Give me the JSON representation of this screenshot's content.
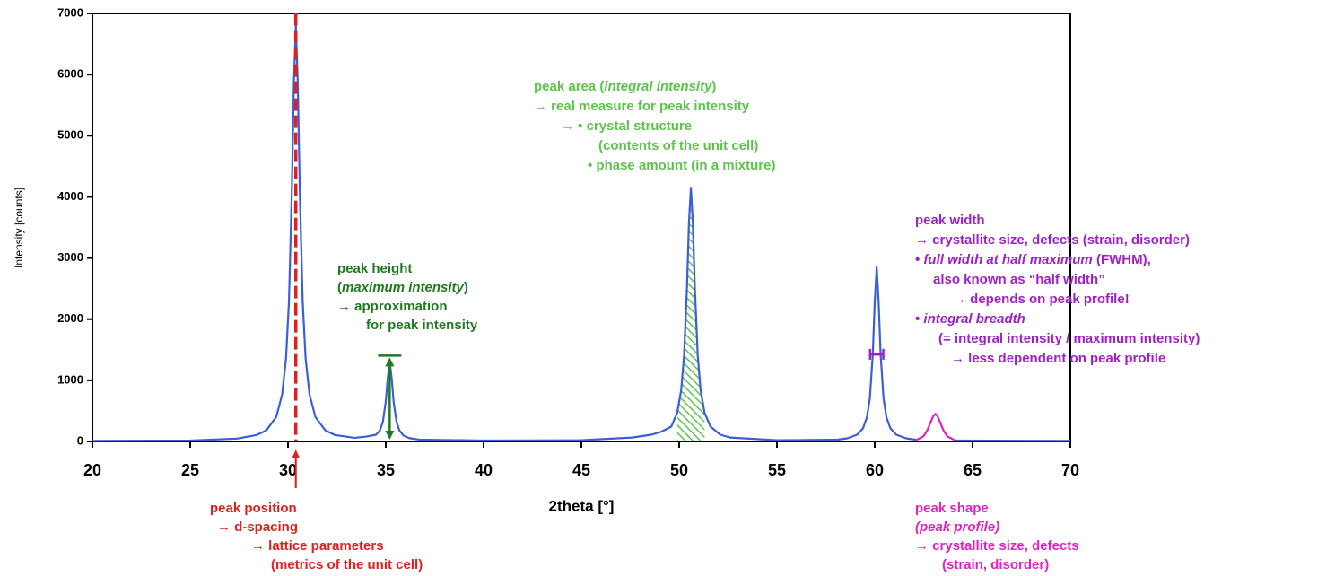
{
  "chart_data": {
    "type": "line",
    "xlabel": "2theta [°]",
    "ylabel": "Intensity [counts]",
    "xlim": [
      20,
      70
    ],
    "ylim": [
      0,
      7000
    ],
    "xticks": [
      20,
      25,
      30,
      35,
      40,
      45,
      50,
      55,
      60,
      65,
      70
    ],
    "yticks": [
      0,
      1000,
      2000,
      3000,
      4000,
      5000,
      6000,
      7000
    ],
    "series": [
      {
        "color": "#3a5fd8",
        "x": [
          20,
          25,
          27.4,
          28.4,
          28.9,
          29.4,
          29.7,
          29.9,
          30.05,
          30.2,
          30.3,
          30.4,
          30.5,
          30.6,
          30.75,
          30.9,
          31.1,
          31.4,
          31.9,
          32.4,
          33.4,
          34,
          34.5,
          34.7,
          34.85,
          35,
          35.1,
          35.2,
          35.3,
          35.4,
          35.55,
          35.7,
          35.9,
          36.2,
          36.7,
          40,
          45,
          47.6,
          48.6,
          49.1,
          49.6,
          49.9,
          50.1,
          50.25,
          50.4,
          50.5,
          50.6,
          50.7,
          50.8,
          50.95,
          51.1,
          51.3,
          51.6,
          52.1,
          52.6,
          55,
          58.1,
          58.6,
          59.1,
          59.4,
          59.6,
          59.75,
          59.9,
          60,
          60.1,
          60.2,
          60.3,
          60.45,
          60.6,
          60.8,
          61.1,
          61.6,
          62.1,
          63.1,
          64.1,
          70
        ],
        "values": [
          10,
          15,
          47,
          105,
          184,
          400,
          769,
          1360,
          2297,
          4146,
          5862,
          6800,
          5862,
          4146,
          2297,
          1360,
          769,
          400,
          184,
          105,
          60,
          80,
          110,
          180,
          320,
          650,
          1040,
          1300,
          1040,
          650,
          320,
          179,
          98,
          55,
          30,
          15,
          20,
          64,
          112,
          160,
          244,
          469,
          830,
          1402,
          2530,
          3578,
          4150,
          3578,
          2530,
          1402,
          830,
          469,
          244,
          112,
          64,
          20,
          29,
          51,
          110,
          215,
          393,
          702,
          1425,
          2280,
          2850,
          2280,
          1425,
          702,
          393,
          215,
          110,
          51,
          29,
          null,
          15,
          10
        ]
      },
      {
        "color": "#e020c8",
        "x": [
          62.1,
          62.5,
          62.7,
          62.85,
          63,
          63.1,
          63.2,
          63.35,
          63.5,
          63.7,
          64.1
        ],
        "values": [
          20,
          85,
          190,
          310,
          420,
          450,
          420,
          310,
          190,
          85,
          20
        ]
      }
    ],
    "annotations": [
      {
        "color": "#e02020",
        "lines": [
          [
            "peak position"
          ],
          [
            "→ d-spacing"
          ],
          [
            "→ lattice parameters"
          ],
          [
            "(metrics of the unit cell)"
          ]
        ]
      },
      {
        "color": "#1f7a1f",
        "lines": [
          [
            "peak height"
          ],
          [
            "(",
            {
              "text": "maximum intensity",
              "italic": true
            },
            ")"
          ],
          [
            "→ approximation"
          ],
          [
            "for peak intensity"
          ]
        ]
      },
      {
        "color": "#5cc44a",
        "lines": [
          [
            "peak area (",
            {
              "text": "integral intensity",
              "italic": true
            },
            ")"
          ],
          [
            "→ real measure for peak intensity"
          ],
          [
            "→ • crystal structure"
          ],
          [
            "(contents of the unit cell)"
          ],
          [
            "• phase amount (in a mixture)"
          ]
        ]
      },
      {
        "color": "#a020c8",
        "lines": [
          [
            "peak width"
          ],
          [
            "→ crystallite size, defects (strain, disorder)"
          ],
          [
            "• ",
            {
              "text": "full width at half maximum",
              "italic": true
            },
            " (FWHM),"
          ],
          [
            "also known as “half width”"
          ],
          [
            "→ depends on peak profile!"
          ],
          [
            "• ",
            {
              "text": "integral breadth",
              "italic": true
            }
          ],
          [
            "(= integral intensity / maximum intensity)"
          ],
          [
            "→ less dependent on peak profile"
          ]
        ]
      },
      {
        "color": "#e020c8",
        "lines": [
          [
            "peak shape"
          ],
          [
            {
              "text": "(peak profile)",
              "italic": true
            }
          ],
          [
            "→ crystallite size, defects"
          ],
          [
            "(strain, disorder)"
          ]
        ]
      }
    ]
  }
}
